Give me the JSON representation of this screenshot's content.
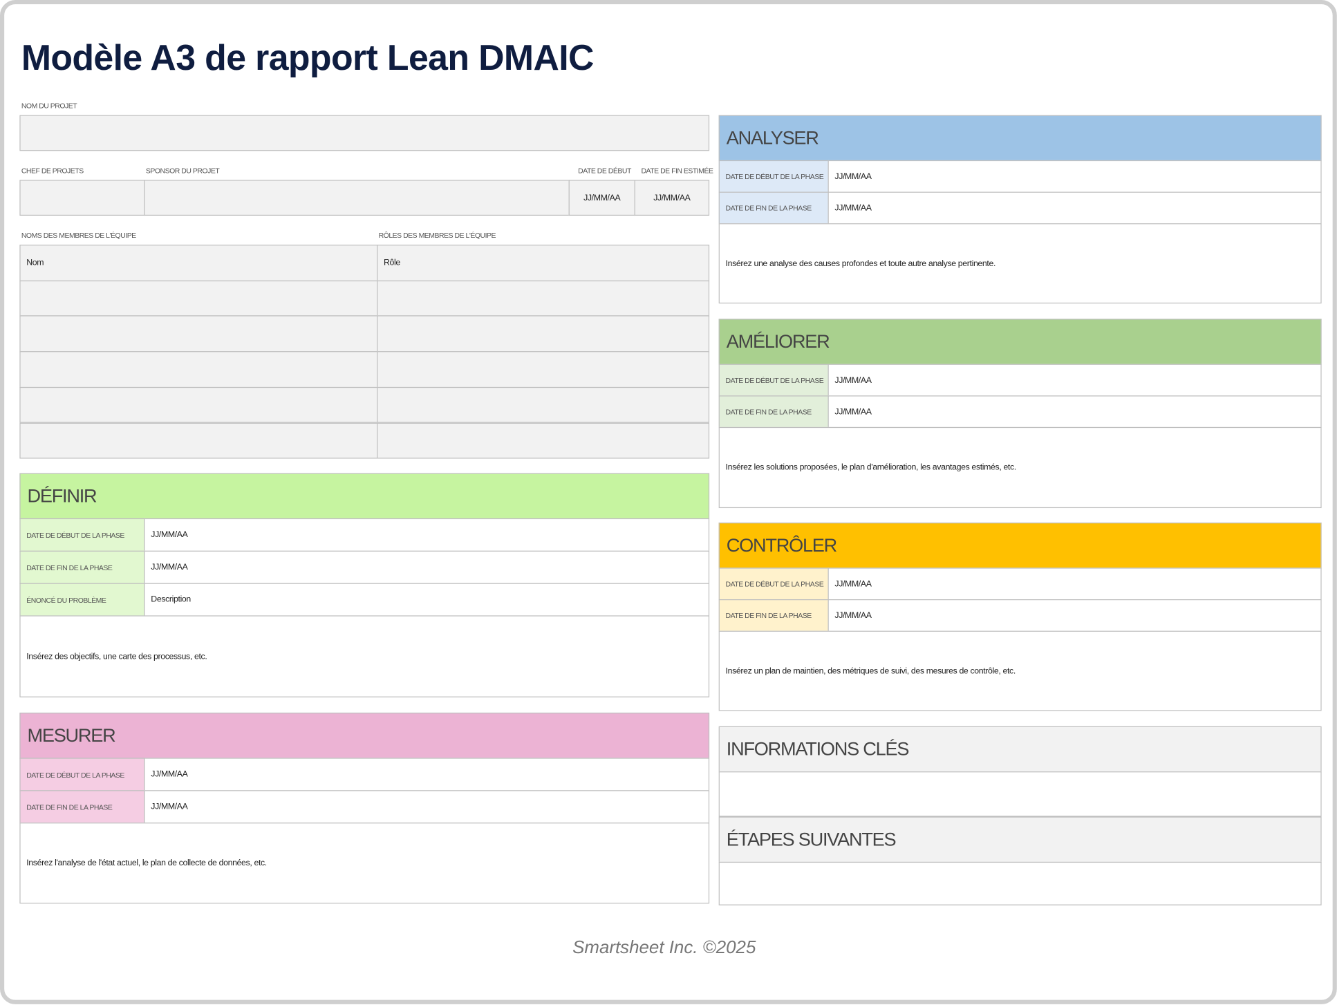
{
  "header": {
    "title": "Modèle A3 de rapport Lean DMAIC"
  },
  "project": {
    "name_label": "NOM DU PROJET",
    "fields": [
      {
        "label": "CHEF DE PROJETS"
      },
      {
        "label": "SPONSOR DU PROJET"
      },
      {
        "label": "DATE DE DÉBUT",
        "value": "JJ/MM/AA"
      },
      {
        "label": "DATE DE FIN ESTIMÉE",
        "value": "JJ/MM/AA"
      }
    ]
  },
  "team": {
    "names_label": "NOMS DES MEMBRES DE L'ÉQUIPE",
    "roles_label": "RÔLES DES MEMBRES DE L'ÉQUIPE",
    "rows": [
      [
        "Nom",
        "Rôle"
      ]
    ]
  },
  "sections": [
    {
      "title": "DÉFINIR",
      "rows": [
        [
          "DATE DE DÉBUT DE LA PHASE",
          "JJ/MM/AA"
        ],
        [
          "DATE DE FIN DE LA PHASE",
          "JJ/MM/AA"
        ],
        [
          "ÉNONCÉ DU PROBLÈME",
          "Description"
        ]
      ],
      "body": "Insérez des objectifs, une carte des processus, etc."
    },
    {
      "title": "MESURER",
      "rows": [
        [
          "DATE DE DÉBUT DE LA PHASE",
          "JJ/MM/AA"
        ],
        [
          "DATE DE FIN DE LA PHASE",
          "JJ/MM/AA"
        ]
      ],
      "body": "Insérez l'analyse de l'état actuel, le plan de collecte de données, etc."
    },
    {
      "title": "ANALYSER",
      "rows": [
        [
          "DATE DE DÉBUT DE LA PHASE",
          "JJ/MM/AA"
        ],
        [
          "DATE DE FIN DE LA PHASE",
          "JJ/MM/AA"
        ]
      ],
      "body": "Insérez une analyse des causes profondes et toute autre analyse pertinente."
    },
    {
      "title": "AMÉLIORER",
      "rows": [
        [
          "DATE DE DÉBUT DE LA PHASE",
          "JJ/MM/AA"
        ],
        [
          "DATE DE FIN DE LA PHASE",
          "JJ/MM/AA"
        ]
      ],
      "body": "Insérez les solutions proposées, le plan d'amélioration, les avantages estimés, etc."
    },
    {
      "title": "CONTRÔLER",
      "rows": [
        [
          "DATE DE DÉBUT DE LA PHASE",
          "JJ/MM/AA"
        ],
        [
          "DATE DE FIN DE LA PHASE",
          "JJ/MM/AA"
        ]
      ],
      "body": "Insérez un plan de maintien, des métriques de suivi, des mesures de contrôle, etc."
    },
    {
      "title": "INFORMATIONS CLÉS"
    },
    {
      "title": "ÉTAPES SUIVANTES"
    }
  ],
  "footer": "Smartsheet Inc. ©2025"
}
